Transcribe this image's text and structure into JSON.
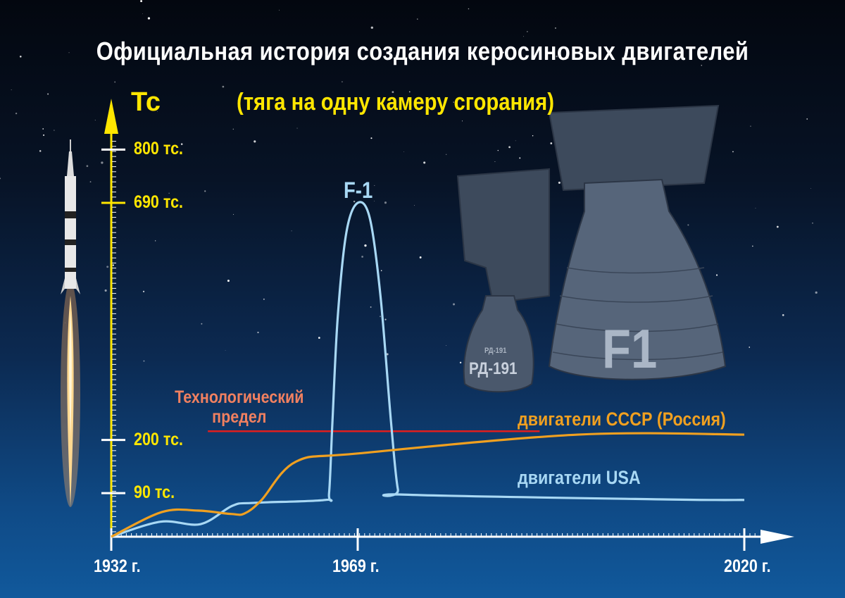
{
  "title": "Официальная история создания керосиновых двигателей",
  "subtitle": "(тяга на одну камеру сгорания)",
  "colors": {
    "usa": "#a8d8f4",
    "ussr": "#f0a020",
    "limit": "#e01e1e",
    "limit_label": "#f08060",
    "axis_label": "#ffe600"
  },
  "illustration": {
    "engine_small": "РД-191",
    "engine_small_nozzle": "РД-191",
    "engine_large": "F1"
  },
  "chart_data": {
    "type": "line",
    "title": "Официальная история создания керосиновых двигателей",
    "subtitle": "(тяга на одну камеру сгорания)",
    "ylabel": "Тс",
    "xlabel": "",
    "ylim": [
      0,
      800
    ],
    "xlim": [
      1932,
      2020
    ],
    "y_ticks": [
      {
        "value": 800,
        "label": "800 тс."
      },
      {
        "value": 690,
        "label": "690 тс."
      },
      {
        "value": 200,
        "label": "200 тс."
      },
      {
        "value": 90,
        "label": "90 тс."
      }
    ],
    "x_ticks": [
      {
        "value": 1932,
        "label": "1932 г."
      },
      {
        "value": 1969,
        "label": "1969 г."
      },
      {
        "value": 2020,
        "label": "2020 г."
      }
    ],
    "grid": false,
    "series": [
      {
        "name": "двигатели USA",
        "color": "#a8d8f4",
        "x": [
          1932,
          1939.4,
          1945.4,
          1950.2,
          1953.4,
          1964.1,
          1964.7,
          1965.2,
          1966,
          1967.3,
          1969,
          1970.6,
          1972,
          1973.4,
          1974.3,
          1975.2,
          2010,
          2020
        ],
        "y": [
          0,
          31,
          26,
          64,
          70,
          76,
          90,
          236,
          454,
          629,
          690,
          658,
          498,
          236,
          98,
          87,
          77,
          76
        ]
      },
      {
        "name": "двигатели СССР (Россия)",
        "color": "#f0a020",
        "x": [
          1932,
          1939.6,
          1945,
          1950,
          1952,
          1954.5,
          1959.7,
          1969,
          1998,
          2020
        ],
        "y": [
          0,
          51,
          54,
          47,
          48,
          75,
          155,
          172,
          211,
          211
        ]
      }
    ],
    "annotations": [
      {
        "text": "Технологический предел",
        "type": "hline",
        "value": 218,
        "x_from": 1946.5,
        "x_to": 1993,
        "color": "#e01e1e"
      },
      {
        "text": "F-1",
        "x": 1969,
        "y": 690
      }
    ]
  }
}
